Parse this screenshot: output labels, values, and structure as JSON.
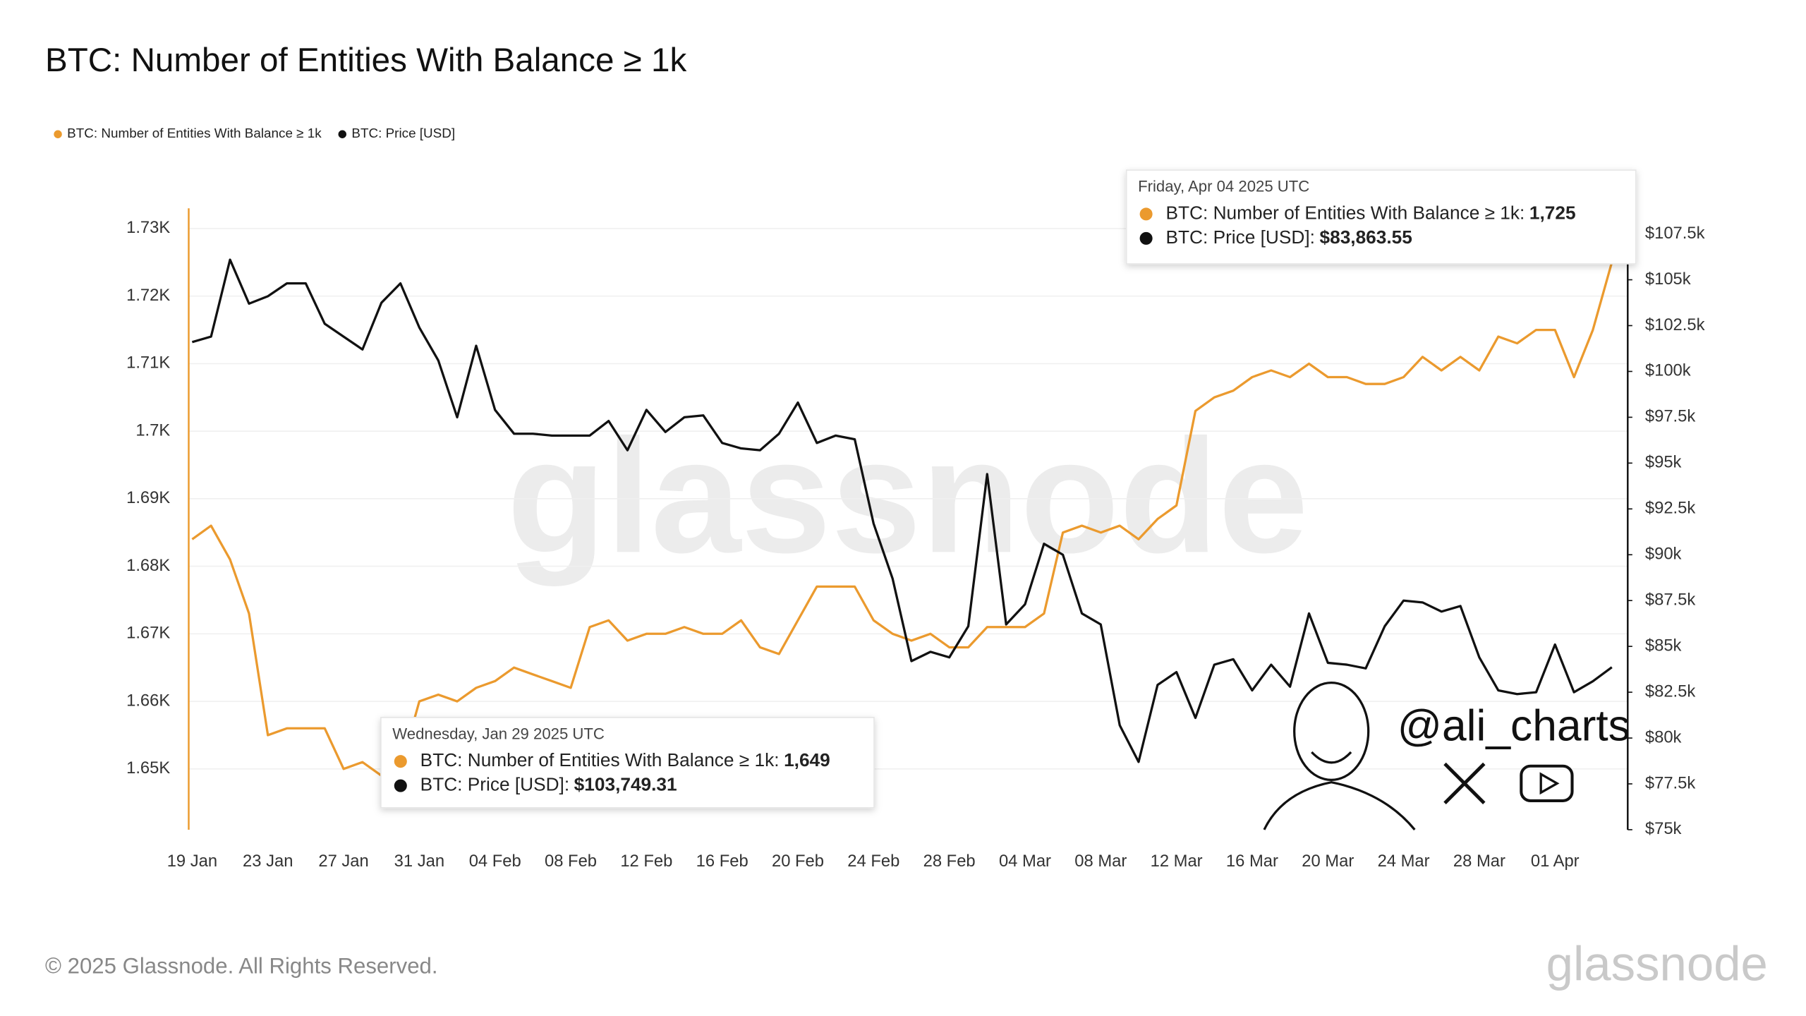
{
  "chart_data": {
    "type": "line",
    "title": "BTC: Number of Entities With Balance ≥ 1k",
    "categories": [
      "19 Jan",
      null,
      null,
      null,
      "23 Jan",
      null,
      null,
      null,
      "27 Jan",
      null,
      null,
      null,
      "31 Jan",
      null,
      null,
      null,
      "04 Feb",
      null,
      null,
      null,
      "08 Feb",
      null,
      null,
      null,
      "12 Feb",
      null,
      null,
      null,
      "16 Feb",
      null,
      null,
      null,
      "20 Feb",
      null,
      null,
      null,
      "24 Feb",
      null,
      null,
      null,
      "28 Feb",
      null,
      null,
      null,
      "04 Mar",
      null,
      null,
      null,
      "08 Mar",
      null,
      null,
      null,
      "12 Mar",
      null,
      null,
      null,
      "16 Mar",
      null,
      null,
      null,
      "20 Mar",
      null,
      null,
      null,
      "24 Mar",
      null,
      null,
      null,
      "28 Mar",
      null,
      null,
      null,
      "01 Apr",
      null,
      null,
      null
    ],
    "series": [
      {
        "name": "BTC: Number of Entities With Balance ≥ 1k",
        "color": "#eb9a2e",
        "values": [
          1684,
          1686,
          1681,
          1673,
          1655,
          1656,
          1656,
          1656,
          1650,
          1651,
          1649,
          1650,
          1660,
          1661,
          1660,
          1662,
          1663,
          1665,
          1664,
          1663,
          1662,
          1671,
          1672,
          1669,
          1670,
          1670,
          1671,
          1670,
          1670,
          1672,
          1668,
          1667,
          1672,
          1677,
          1677,
          1677,
          1672,
          1670,
          1669,
          1670,
          1668,
          1668,
          1671,
          1671,
          1671,
          1673,
          1685,
          1686,
          1685,
          1686,
          1684,
          1687,
          1689,
          1703,
          1705,
          1706,
          1708,
          1709,
          1708,
          1710,
          1708,
          1708,
          1707,
          1707,
          1708,
          1711,
          1709,
          1711,
          1709,
          1714,
          1713,
          1715,
          1715,
          1708,
          1715,
          1725
        ]
      },
      {
        "name": "BTC: Price [USD]",
        "color": "#111111",
        "axis": "y2",
        "values": [
          101600,
          101900,
          106100,
          103700,
          104100,
          104800,
          104800,
          102600,
          101900,
          101200,
          103749.31,
          104800,
          102400,
          100600,
          97500,
          101400,
          97900,
          96600,
          96600,
          96500,
          96500,
          96500,
          97300,
          95700,
          97900,
          96700,
          97500,
          97600,
          96100,
          95800,
          95700,
          96600,
          98300,
          96100,
          96500,
          96300,
          91700,
          88700,
          84200,
          84700,
          84400,
          86100,
          94400,
          86200,
          87300,
          90600,
          90000,
          86800,
          86200,
          80700,
          78700,
          82900,
          83600,
          81100,
          84000,
          84300,
          82600,
          84000,
          82800,
          86800,
          84100,
          84000,
          83800,
          86100,
          87500,
          87400,
          86900,
          87200,
          84400,
          82600,
          82400,
          82500,
          85100,
          82500,
          83100,
          83863.55
        ]
      }
    ],
    "ylim": [
      1641,
      1733
    ],
    "yticks": [
      {
        "value": 1650,
        "label": "1.65K"
      },
      {
        "value": 1660,
        "label": "1.66K"
      },
      {
        "value": 1670,
        "label": "1.67K"
      },
      {
        "value": 1680,
        "label": "1.68K"
      },
      {
        "value": 1690,
        "label": "1.69K"
      },
      {
        "value": 1700,
        "label": "1.7K"
      },
      {
        "value": 1710,
        "label": "1.71K"
      },
      {
        "value": 1720,
        "label": "1.72K"
      },
      {
        "value": 1730,
        "label": "1.73K"
      }
    ],
    "y2lim": [
      75000,
      108900
    ],
    "y2ticks": [
      {
        "value": 75000,
        "label": "$75k"
      },
      {
        "value": 77500,
        "label": "$77.5k"
      },
      {
        "value": 80000,
        "label": "$80k"
      },
      {
        "value": 82500,
        "label": "$82.5k"
      },
      {
        "value": 85000,
        "label": "$85k"
      },
      {
        "value": 87500,
        "label": "$87.5k"
      },
      {
        "value": 90000,
        "label": "$90k"
      },
      {
        "value": 92500,
        "label": "$92.5k"
      },
      {
        "value": 95000,
        "label": "$95k"
      },
      {
        "value": 97500,
        "label": "$97.5k"
      },
      {
        "value": 100000,
        "label": "$100k"
      },
      {
        "value": 102500,
        "label": "$102.5k"
      },
      {
        "value": 105000,
        "label": "$105k"
      },
      {
        "value": 107500,
        "label": "$107.5k"
      }
    ],
    "grid": true,
    "legend": "top-left",
    "tooltips": [
      {
        "date": "Wednesday, Jan 29 2025 UTC",
        "rows": [
          {
            "label": "BTC: Number of Entities With Balance ≥ 1k:",
            "value": "1,649"
          },
          {
            "label": "BTC: Price [USD]:",
            "value": "$103,749.31"
          }
        ]
      },
      {
        "date": "Friday, Apr 04 2025 UTC",
        "rows": [
          {
            "label": "BTC: Number of Entities With Balance ≥ 1k:",
            "value": "1,725"
          },
          {
            "label": "BTC: Price [USD]:",
            "value": "$83,863.55"
          }
        ]
      }
    ],
    "watermark": "glassnode",
    "handle": "@ali_charts",
    "footer": "© 2025 Glassnode. All Rights Reserved.",
    "logo": "glassnode"
  }
}
